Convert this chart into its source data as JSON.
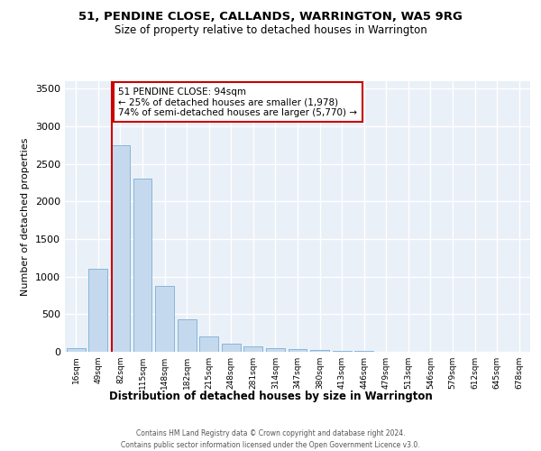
{
  "title": "51, PENDINE CLOSE, CALLANDS, WARRINGTON, WA5 9RG",
  "subtitle": "Size of property relative to detached houses in Warrington",
  "xlabel": "Distribution of detached houses by size in Warrington",
  "ylabel": "Number of detached properties",
  "bar_color": "#c5d9ee",
  "bar_edge_color": "#7aafd4",
  "background_color": "#eaf0f8",
  "grid_color": "#ffffff",
  "annotation_box_color": "#cc0000",
  "annotation_line_color": "#cc0000",
  "annotation_line1": "51 PENDINE CLOSE: 94sqm",
  "annotation_line2": "← 25% of detached houses are smaller (1,978)",
  "annotation_line3": "74% of semi-detached houses are larger (5,770) →",
  "footer_line1": "Contains HM Land Registry data © Crown copyright and database right 2024.",
  "footer_line2": "Contains public sector information licensed under the Open Government Licence v3.0.",
  "categories": [
    "16sqm",
    "49sqm",
    "82sqm",
    "115sqm",
    "148sqm",
    "182sqm",
    "215sqm",
    "248sqm",
    "281sqm",
    "314sqm",
    "347sqm",
    "380sqm",
    "413sqm",
    "446sqm",
    "479sqm",
    "513sqm",
    "546sqm",
    "579sqm",
    "612sqm",
    "645sqm",
    "678sqm"
  ],
  "values": [
    50,
    1100,
    2750,
    2300,
    880,
    430,
    200,
    105,
    75,
    50,
    35,
    20,
    15,
    8,
    5,
    3,
    2,
    1,
    1,
    0,
    0
  ],
  "red_line_x": 1.62,
  "ylim": [
    0,
    3600
  ],
  "yticks": [
    0,
    500,
    1000,
    1500,
    2000,
    2500,
    3000,
    3500
  ]
}
